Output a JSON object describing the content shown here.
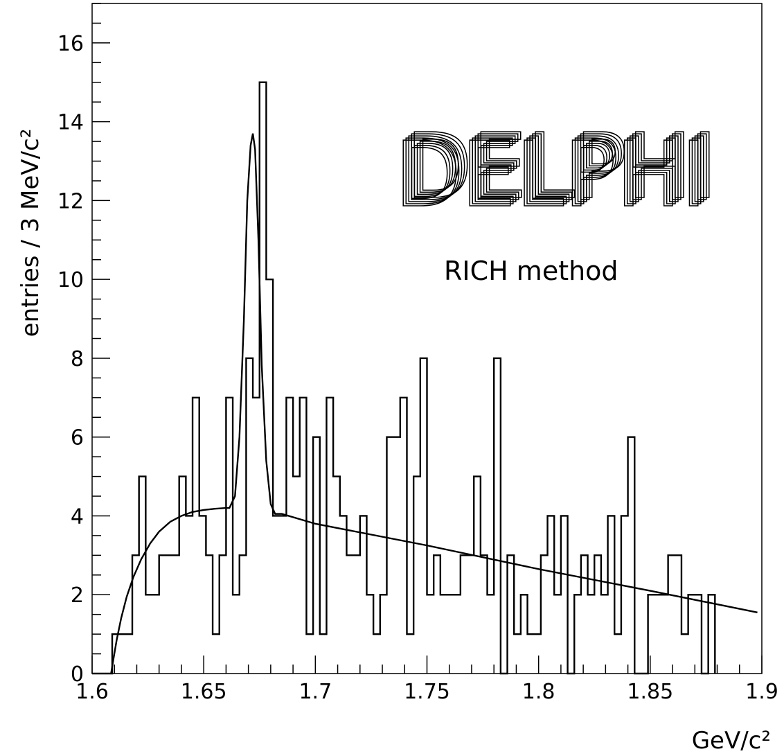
{
  "chart_data": {
    "type": "bar",
    "subtype": "histogram-step-with-fit",
    "xlabel": "GeV/c²",
    "ylabel": "entries / 3 MeV/c²",
    "xlim": [
      1.6,
      1.9
    ],
    "ylim": [
      0,
      17
    ],
    "bin_width": 0.003,
    "x_ticks": [
      "1.6",
      "1.65",
      "1.7",
      "1.75",
      "1.8",
      "1.85",
      "1.9"
    ],
    "y_ticks": [
      "0",
      "2",
      "4",
      "6",
      "8",
      "10",
      "12",
      "14",
      "16"
    ],
    "grid": false,
    "annotations": [
      "RICH method"
    ],
    "logo": "DELPHI",
    "series": [
      {
        "type": "histogram",
        "values": [
          0,
          0,
          0,
          1,
          1,
          1,
          3,
          5,
          2,
          2,
          3,
          3,
          3,
          5,
          4,
          7,
          4,
          3,
          1,
          3,
          7,
          2,
          3,
          8,
          7,
          15,
          10,
          4,
          4,
          7,
          5,
          7,
          1,
          6,
          1,
          7,
          5,
          4,
          3,
          3,
          4,
          2,
          1,
          2,
          6,
          6,
          7,
          1,
          5,
          8,
          2,
          3,
          2,
          2,
          2,
          3,
          3,
          5,
          3,
          2,
          8,
          0,
          3,
          1,
          2,
          1,
          1,
          3,
          4,
          2,
          4,
          0,
          2,
          3,
          2,
          3,
          2,
          4,
          1,
          4,
          6,
          0,
          0,
          2,
          2,
          2,
          3,
          3,
          1,
          2,
          2,
          0,
          2
        ],
        "bin_start": 1.6
      },
      {
        "type": "line",
        "x": [
          1.6085,
          1.6095,
          1.611,
          1.613,
          1.6155,
          1.6185,
          1.622,
          1.626,
          1.63,
          1.635,
          1.64,
          1.645,
          1.65,
          1.655,
          1.66,
          1.6615,
          1.664,
          1.666,
          1.668,
          1.6695,
          1.671,
          1.672,
          1.673,
          1.6745,
          1.676,
          1.678,
          1.68,
          1.682,
          1.685,
          1.7,
          1.75,
          1.8,
          1.85,
          1.898
        ],
        "y": [
          0.0,
          0.35,
          0.85,
          1.4,
          1.95,
          2.45,
          2.9,
          3.3,
          3.6,
          3.85,
          4.0,
          4.1,
          4.15,
          4.18,
          4.2,
          4.2,
          4.5,
          6.0,
          9.0,
          12.0,
          13.4,
          13.7,
          13.3,
          11.0,
          7.8,
          5.4,
          4.3,
          4.05,
          4.05,
          3.8,
          3.25,
          2.65,
          2.1,
          1.55
        ]
      }
    ]
  }
}
